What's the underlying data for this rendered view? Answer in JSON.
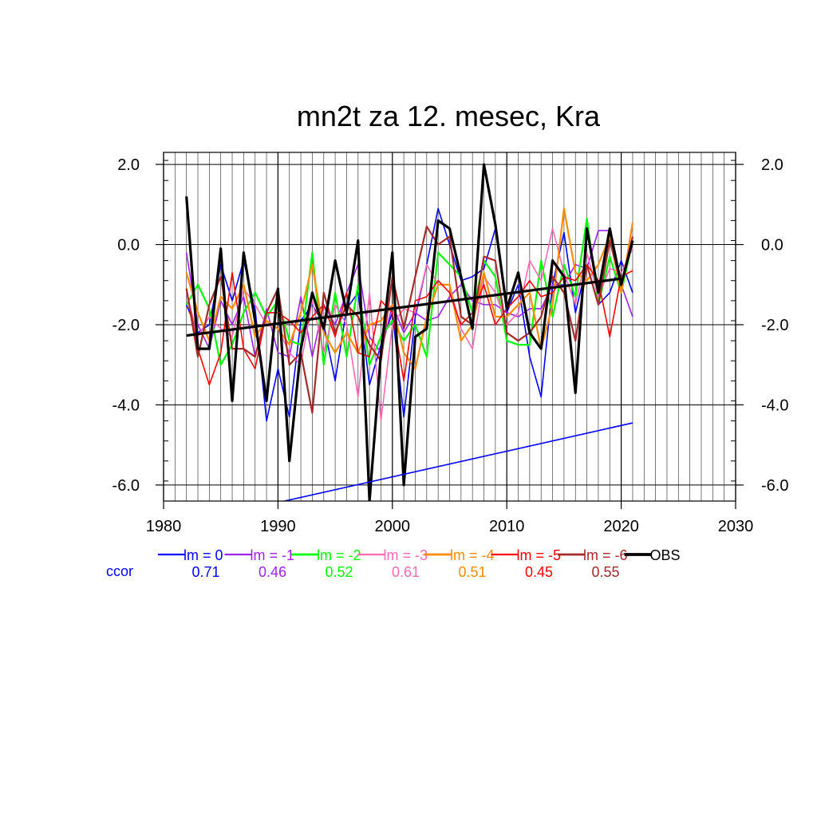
{
  "chart_data": {
    "type": "line",
    "title": "mn2t za 12. mesec, Kra",
    "xlabel": "",
    "ylabel": "",
    "xlim": [
      1980,
      2030
    ],
    "ylim": [
      -6.4,
      2.3
    ],
    "x_ticks": [
      "1980",
      "1990",
      "2000",
      "2010",
      "2020",
      "2030"
    ],
    "y_ticks": [
      "2.0",
      "0.0",
      "-2.0",
      "-4.0",
      "-6.0"
    ],
    "y_tick_values": [
      2,
      0,
      -2,
      -4,
      -6
    ],
    "x_tick_values": [
      1980,
      1990,
      2000,
      2010,
      2020,
      2030
    ],
    "grid": true,
    "legend_position": "bottom",
    "ccor_label": "ccor",
    "x": [
      1982,
      1983,
      1984,
      1985,
      1986,
      1987,
      1988,
      1989,
      1990,
      1991,
      1992,
      1993,
      1994,
      1995,
      1996,
      1997,
      1998,
      1999,
      2000,
      2001,
      2002,
      2003,
      2004,
      2005,
      2006,
      2007,
      2008,
      2009,
      2010,
      2011,
      2012,
      2013,
      2014,
      2015,
      2016,
      2017,
      2018,
      2019,
      2020,
      2021
    ],
    "series": [
      {
        "name": "lm = 0",
        "ccor": "0.71",
        "color": "#0000ff",
        "width": 1.6,
        "values": [
          -1.5,
          -2.2,
          -2.0,
          -0.5,
          -1.4,
          -0.4,
          -1.6,
          -4.4,
          -3.1,
          -4.3,
          -1.9,
          -1.5,
          -2.0,
          -3.4,
          -1.6,
          -1.2,
          -3.5,
          -2.5,
          -1.7,
          -4.3,
          -1.8,
          -0.5,
          0.9,
          0.0,
          -0.9,
          -0.8,
          -0.6,
          0.4,
          -1.7,
          -1.0,
          -2.8,
          -3.8,
          -1.0,
          0.3,
          -1.7,
          -0.5,
          -1.5,
          -1.2,
          -0.4,
          -1.2
        ]
      },
      {
        "name": "lm = -1",
        "ccor": "0.46",
        "color": "#a020f0",
        "width": 1.6,
        "values": [
          -0.2,
          -2.0,
          -2.6,
          -1.4,
          -2.0,
          -1.3,
          -2.8,
          -1.6,
          -2.7,
          -2.8,
          -1.3,
          -2.8,
          -1.5,
          -2.0,
          -1.2,
          -0.5,
          -2.3,
          -2.7,
          -1.5,
          -2.2,
          -1.7,
          -1.9,
          -1.8,
          -1.3,
          -1.0,
          -1.4,
          -1.5,
          -1.5,
          -1.7,
          -1.8,
          -1.6,
          -1.6,
          -1.0,
          -1.0,
          -0.5,
          -0.6,
          0.35,
          0.35,
          -1.0,
          -1.8
        ]
      },
      {
        "name": "lm = -2",
        "ccor": "0.52",
        "color": "#00ff00",
        "width": 2.2,
        "values": [
          -1.5,
          -1.0,
          -1.6,
          -3.0,
          -2.5,
          -1.7,
          -1.2,
          -1.8,
          -1.4,
          -2.4,
          -2.5,
          -0.2,
          -3.0,
          -1.2,
          -2.8,
          -1.0,
          -3.0,
          -2.3,
          -1.9,
          -2.4,
          -2.0,
          -2.8,
          -0.2,
          -0.5,
          -0.8,
          -1.7,
          -0.4,
          -0.8,
          -2.4,
          -2.5,
          -2.5,
          -0.4,
          -1.8,
          -0.5,
          -1.3,
          0.65,
          -1.5,
          -0.3,
          -1.2,
          0.1
        ]
      },
      {
        "name": "lm = -3",
        "ccor": "0.61",
        "color": "#ff69b4",
        "width": 1.6,
        "values": [
          -1.2,
          -2.3,
          -1.8,
          -2.1,
          -2.3,
          -1.1,
          -1.5,
          -2.0,
          -2.1,
          -2.7,
          -3.0,
          -1.4,
          -2.7,
          -1.5,
          -2.0,
          -3.8,
          -1.2,
          -4.4,
          -2.0,
          -1.6,
          -1.7,
          -0.5,
          -1.0,
          -1.0,
          -2.1,
          -2.6,
          -0.8,
          -1.2,
          -2.0,
          -1.7,
          -0.4,
          -0.9,
          0.4,
          -0.7,
          -1.5,
          -0.2,
          -1.3,
          -0.6,
          -0.7,
          -0.1
        ]
      },
      {
        "name": "lm = -4",
        "ccor": "0.51",
        "color": "#ff8c00",
        "width": 2.2,
        "values": [
          -0.7,
          -1.7,
          -2.4,
          -1.3,
          -1.6,
          -1.0,
          -2.3,
          -1.9,
          -2.1,
          -2.5,
          -1.7,
          -0.5,
          -2.2,
          -2.7,
          -2.2,
          -2.7,
          -2.0,
          -1.9,
          -1.5,
          -2.7,
          -3.1,
          -1.8,
          -1.0,
          -1.0,
          -2.4,
          -2.0,
          -0.7,
          -1.8,
          -1.8,
          -1.5,
          -1.2,
          -2.6,
          -1.5,
          0.9,
          -0.7,
          -0.9,
          -0.5,
          0.2,
          -1.2,
          0.55
        ]
      },
      {
        "name": "lm = -5",
        "ccor": "0.45",
        "color": "#ff0000",
        "width": 1.6,
        "values": [
          -1.1,
          -2.6,
          -3.5,
          -2.7,
          -0.7,
          -2.6,
          -3.1,
          -1.7,
          -1.7,
          -1.9,
          -2.2,
          -1.8,
          -1.5,
          -2.3,
          -1.2,
          -2.7,
          -2.8,
          -1.4,
          -1.7,
          -3.4,
          -1.4,
          -1.3,
          -0.9,
          -1.2,
          -2.0,
          -1.7,
          -1.0,
          -2.0,
          -1.6,
          -1.3,
          -0.9,
          -1.3,
          -1.2,
          -0.8,
          -0.9,
          -0.5,
          -0.9,
          -2.3,
          -0.8,
          -0.65
        ]
      },
      {
        "name": "lm = -6",
        "ccor": "0.55",
        "color": "#a52a2a",
        "width": 2.2,
        "values": [
          -1.1,
          -2.8,
          -1.5,
          -0.8,
          -2.6,
          -2.6,
          -2.8,
          -1.7,
          -1.1,
          -3.0,
          -2.7,
          -4.2,
          -1.2,
          -2.2,
          -1.5,
          -1.8,
          -2.5,
          -2.9,
          -0.8,
          -2.1,
          -0.8,
          0.45,
          0.0,
          0.2,
          -1.8,
          -2.0,
          -0.3,
          -0.4,
          -2.2,
          -2.4,
          -2.2,
          -1.8,
          -0.8,
          -1.2,
          -2.4,
          -0.5,
          -1.5,
          0.1,
          -1.0,
          0.2
        ]
      },
      {
        "name": "OBS",
        "ccor": "",
        "color": "#000000",
        "width": 3.2,
        "values": [
          1.2,
          -2.6,
          -2.6,
          -0.1,
          -3.9,
          -0.2,
          -1.9,
          -3.9,
          -1.1,
          -5.4,
          -2.6,
          -1.2,
          -2.1,
          -0.4,
          -1.7,
          0.1,
          -6.4,
          -2.7,
          -0.2,
          -6.0,
          -2.3,
          -2.1,
          0.6,
          0.4,
          -0.8,
          -2.1,
          2.0,
          0.5,
          -1.6,
          -0.7,
          -2.2,
          -2.6,
          -0.4,
          -0.8,
          -3.7,
          0.4,
          -1.2,
          0.4,
          -1.0,
          0.1
        ]
      }
    ],
    "trend_lines": [
      {
        "name": "OBS trend",
        "color": "#000000",
        "width": 3.2,
        "x": [
          1982,
          2020
        ],
        "y": [
          -2.27,
          -0.85
        ]
      },
      {
        "name": "lm = 0 trend",
        "color": "#0000ff",
        "width": 1.6,
        "x": [
          1982,
          2021
        ],
        "y": [
          -6.95,
          -4.45
        ]
      }
    ]
  }
}
